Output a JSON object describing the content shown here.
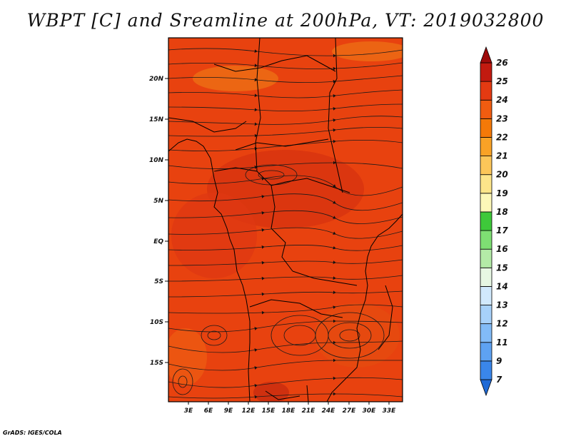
{
  "title": "WBPT [C] and Sreamline at 200hPa, VT: 2019032800",
  "credit": "GrADS: IGES/COLA",
  "map": {
    "lat_ticks": [
      "20N",
      "15N",
      "10N",
      "5N",
      "EQ",
      "5S",
      "10S",
      "15S"
    ],
    "lon_ticks": [
      "3E",
      "6E",
      "9E",
      "12E",
      "15E",
      "18E",
      "21E",
      "24E",
      "27E",
      "30E",
      "33E"
    ],
    "background_color": "#e43d10"
  },
  "colorbar": {
    "labels": [
      "7",
      "9",
      "11",
      "12",
      "13",
      "14",
      "15",
      "16",
      "17",
      "18",
      "19",
      "20",
      "21",
      "22",
      "23",
      "24",
      "25",
      "26"
    ],
    "colors": [
      "#1f6ad6",
      "#3a86ea",
      "#5ea2f2",
      "#82bbf7",
      "#a7d1fa",
      "#d1e9fd",
      "#e7f7e3",
      "#b4eba7",
      "#7edf73",
      "#3ec93a",
      "#fdf8b8",
      "#fde58a",
      "#fcc659",
      "#f9a226",
      "#f47908",
      "#f15c10",
      "#e43a12",
      "#c21a10",
      "#9e0b0b"
    ]
  }
}
